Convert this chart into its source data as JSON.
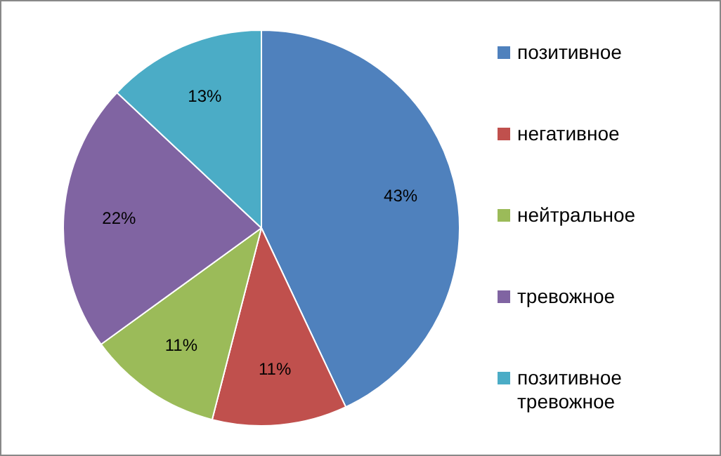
{
  "chart_data": {
    "type": "pie",
    "categories": [
      "позитивное",
      "негативное",
      "нейтральное",
      "тревожное",
      "позитивное тревожное"
    ],
    "values": [
      43,
      11,
      11,
      22,
      13
    ],
    "colors": [
      "#4f81bd",
      "#c0504d",
      "#9bbb59",
      "#8064a2",
      "#4bacc6"
    ],
    "value_labels": [
      "43%",
      "11%",
      "11%",
      "22%",
      "13%"
    ],
    "legend": "right"
  }
}
